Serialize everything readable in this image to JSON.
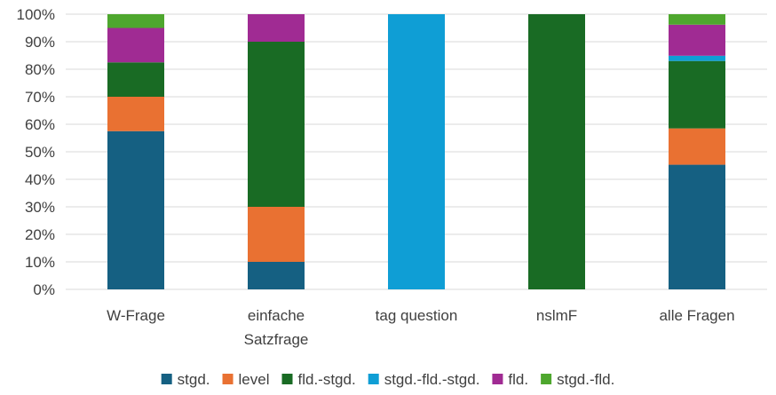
{
  "chart_data": {
    "type": "bar",
    "stacked": true,
    "categories": [
      [
        "W-Frage"
      ],
      [
        "einfache",
        "Satzfrage"
      ],
      [
        "tag question"
      ],
      [
        "nslmF"
      ],
      [
        "alle Fragen"
      ]
    ],
    "series": [
      {
        "name": "stgd.",
        "color": "#156082",
        "values": [
          57.5,
          10,
          0,
          0,
          45.3
        ]
      },
      {
        "name": "level",
        "color": "#E97132",
        "values": [
          12.5,
          20,
          0,
          0,
          13.2
        ]
      },
      {
        "name": "fld.-stgd.",
        "color": "#196B24",
        "values": [
          12.5,
          60,
          0,
          100,
          24.5
        ]
      },
      {
        "name": "stgd.-fld.-stgd.",
        "color": "#0F9ED5",
        "values": [
          0,
          0,
          100,
          0,
          1.9
        ]
      },
      {
        "name": "fld.",
        "color": "#A02B93",
        "values": [
          12.5,
          10,
          0,
          0,
          11.3
        ]
      },
      {
        "name": "stgd.-fld.",
        "color": "#4EA72E",
        "values": [
          5,
          0,
          0,
          0,
          3.8
        ]
      }
    ],
    "ylim": [
      0,
      100
    ],
    "yticks": [
      "0%",
      "10%",
      "20%",
      "30%",
      "40%",
      "50%",
      "60%",
      "70%",
      "80%",
      "90%",
      "100%"
    ],
    "grid": true,
    "legend_position": "bottom",
    "title": "",
    "xlabel": "",
    "ylabel": ""
  }
}
